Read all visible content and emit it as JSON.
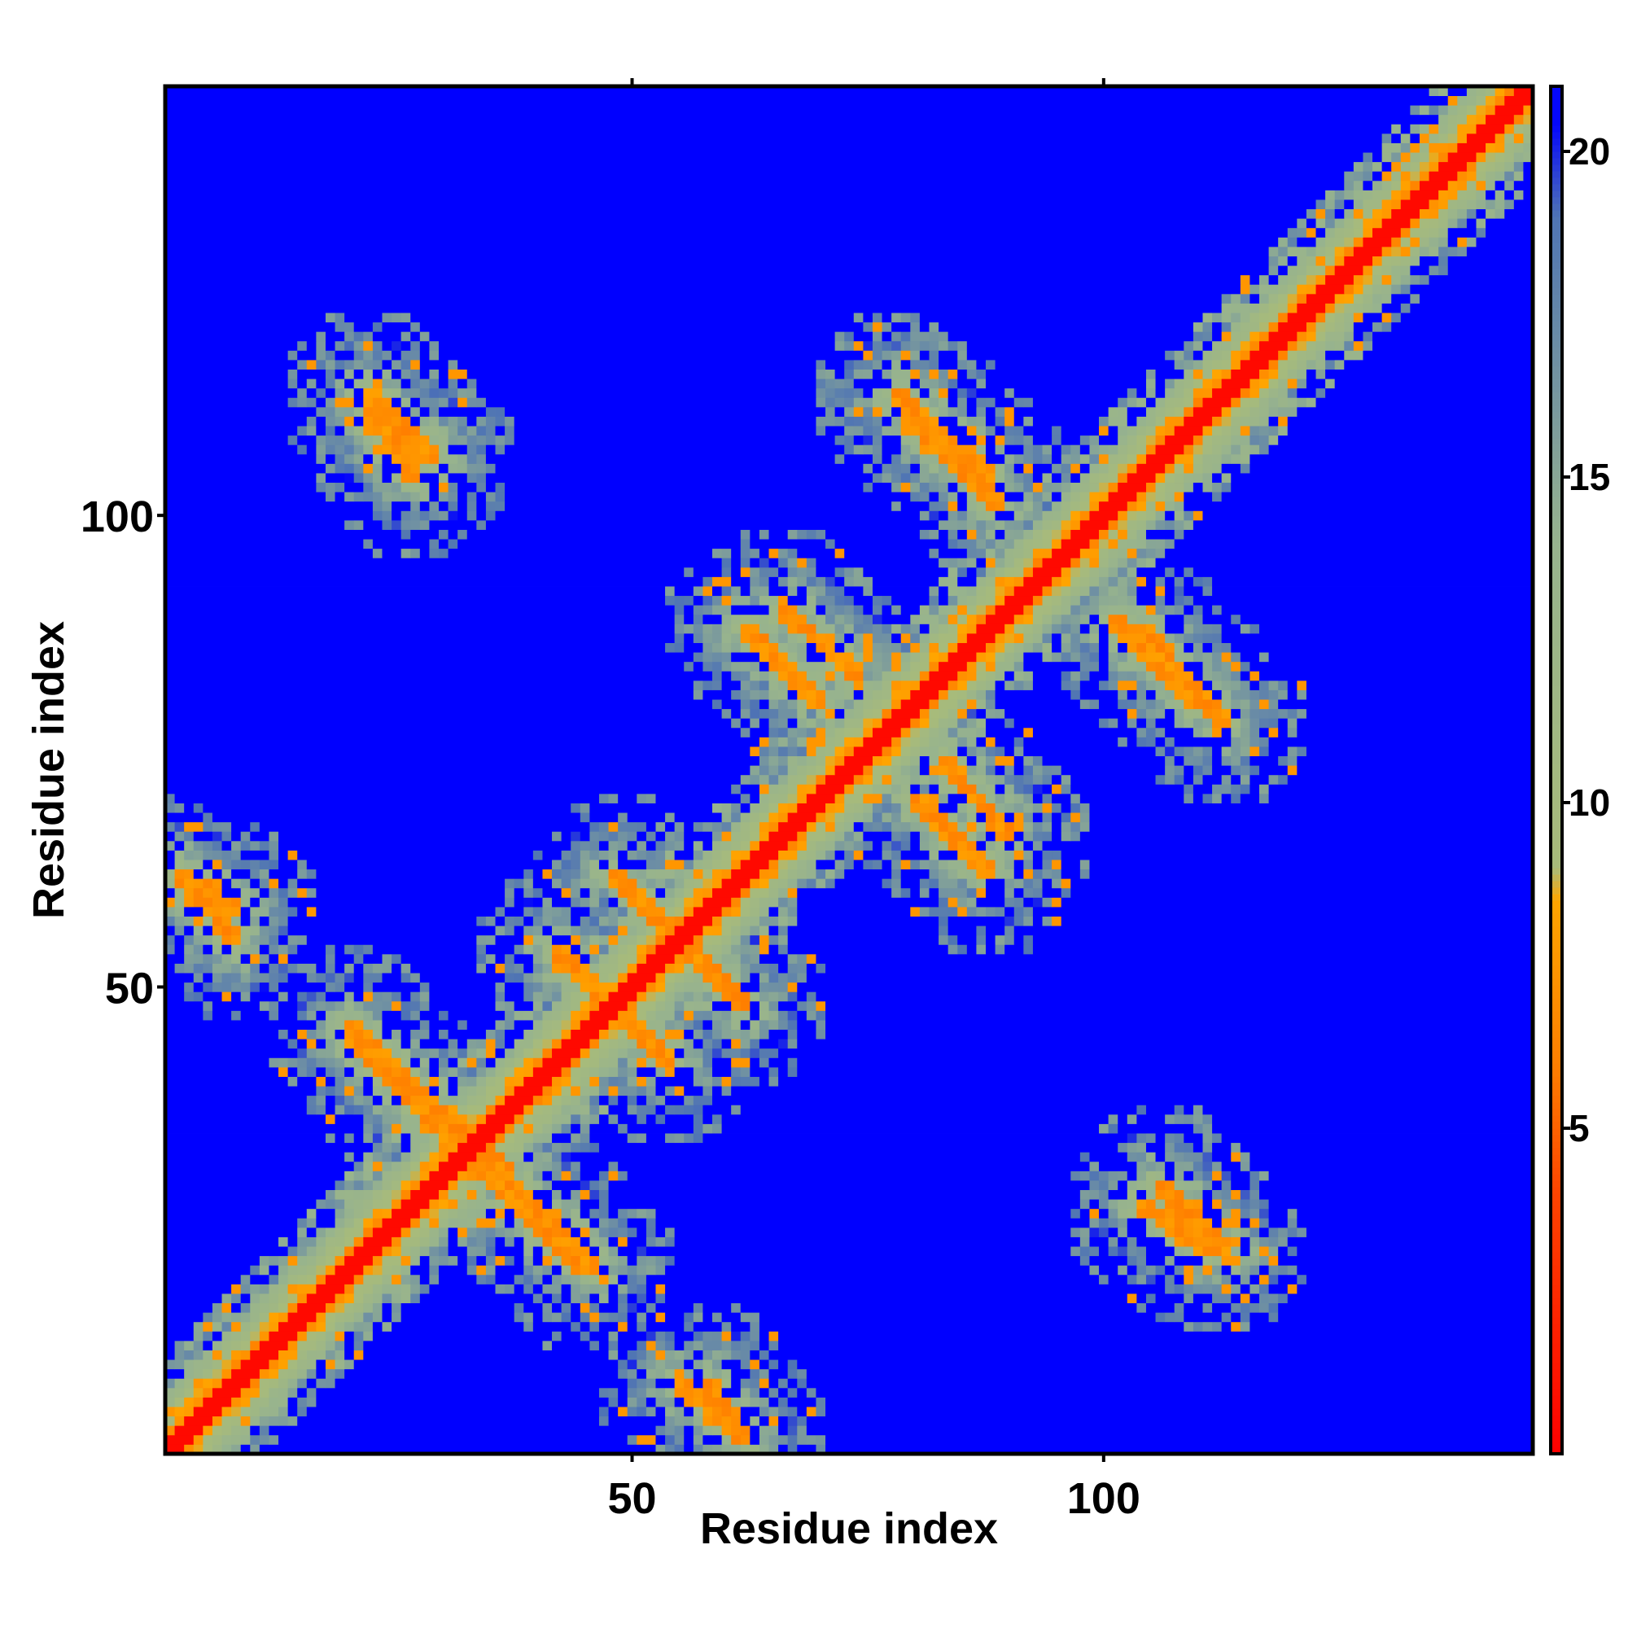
{
  "chart_data": {
    "type": "heatmap",
    "title": "",
    "xlabel": "Residue index",
    "ylabel": "Residue index",
    "n_residues": 145,
    "xlim": [
      1,
      145
    ],
    "ylim": [
      1,
      145
    ],
    "x_ticks": [
      50,
      100
    ],
    "x_tick_labels": [
      "50",
      "100"
    ],
    "y_ticks": [
      50,
      100
    ],
    "y_tick_labels": [
      "50",
      "100"
    ],
    "colorbar": {
      "range": [
        0,
        21
      ],
      "ticks": [
        5,
        10,
        15,
        20
      ],
      "tick_labels": [
        "5",
        "10",
        "15",
        "20"
      ],
      "stops": [
        {
          "value": 0,
          "color": "#ff0000"
        },
        {
          "value": 4,
          "color": "#ff4400"
        },
        {
          "value": 6,
          "color": "#ff7f00"
        },
        {
          "value": 8.5,
          "color": "#ffa500"
        },
        {
          "value": 9,
          "color": "#a8bb7a"
        },
        {
          "value": 14,
          "color": "#97b38e"
        },
        {
          "value": 19,
          "color": "#4f74b4"
        },
        {
          "value": 20.5,
          "color": "#0000ff"
        }
      ]
    },
    "background_value": 21,
    "background_color": "#0000ff",
    "diagonal": {
      "core_value": 0.5,
      "band_width": 6
    },
    "features": [
      {
        "i": [
          2,
          28
        ],
        "j": [
          2,
          28
        ],
        "kind": "diag"
      },
      {
        "i": [
          28,
          60
        ],
        "j": [
          28,
          60
        ],
        "kind": "diag"
      },
      {
        "i": [
          60,
          110
        ],
        "j": [
          60,
          110
        ],
        "kind": "diag"
      },
      {
        "i": [
          110,
          145
        ],
        "j": [
          110,
          145
        ],
        "kind": "diag"
      },
      {
        "i": [
          30,
          45
        ],
        "j": [
          34,
          20
        ],
        "kind": "anti"
      },
      {
        "i": [
          48,
          62
        ],
        "j": [
          62,
          48
        ],
        "kind": "anti"
      },
      {
        "i": [
          42,
          52
        ],
        "j": [
          54,
          44
        ],
        "kind": "anti"
      },
      {
        "i": [
          55,
          62
        ],
        "j": [
          8,
          2
        ],
        "kind": "anti"
      },
      {
        "i": [
          2,
          8
        ],
        "j": [
          62,
          58
        ],
        "kind": "anti"
      },
      {
        "i": [
          20,
          33
        ],
        "j": [
          46,
          34
        ],
        "kind": "anti"
      },
      {
        "i": [
          66,
          74
        ],
        "j": [
          90,
          83
        ],
        "kind": "anti"
      },
      {
        "i": [
          80,
          88
        ],
        "j": [
          70,
          62
        ],
        "kind": "anti"
      },
      {
        "i": [
          78,
          88
        ],
        "j": [
          113,
          104
        ],
        "kind": "anti"
      },
      {
        "i": [
          101,
          110
        ],
        "j": [
          89,
          80
        ],
        "kind": "anti"
      },
      {
        "i": [
          22,
          29
        ],
        "j": [
          113,
          106
        ],
        "kind": "anti"
      },
      {
        "i": [
          104,
          111
        ],
        "j": [
          27,
          22
        ],
        "kind": "anti"
      }
    ]
  }
}
